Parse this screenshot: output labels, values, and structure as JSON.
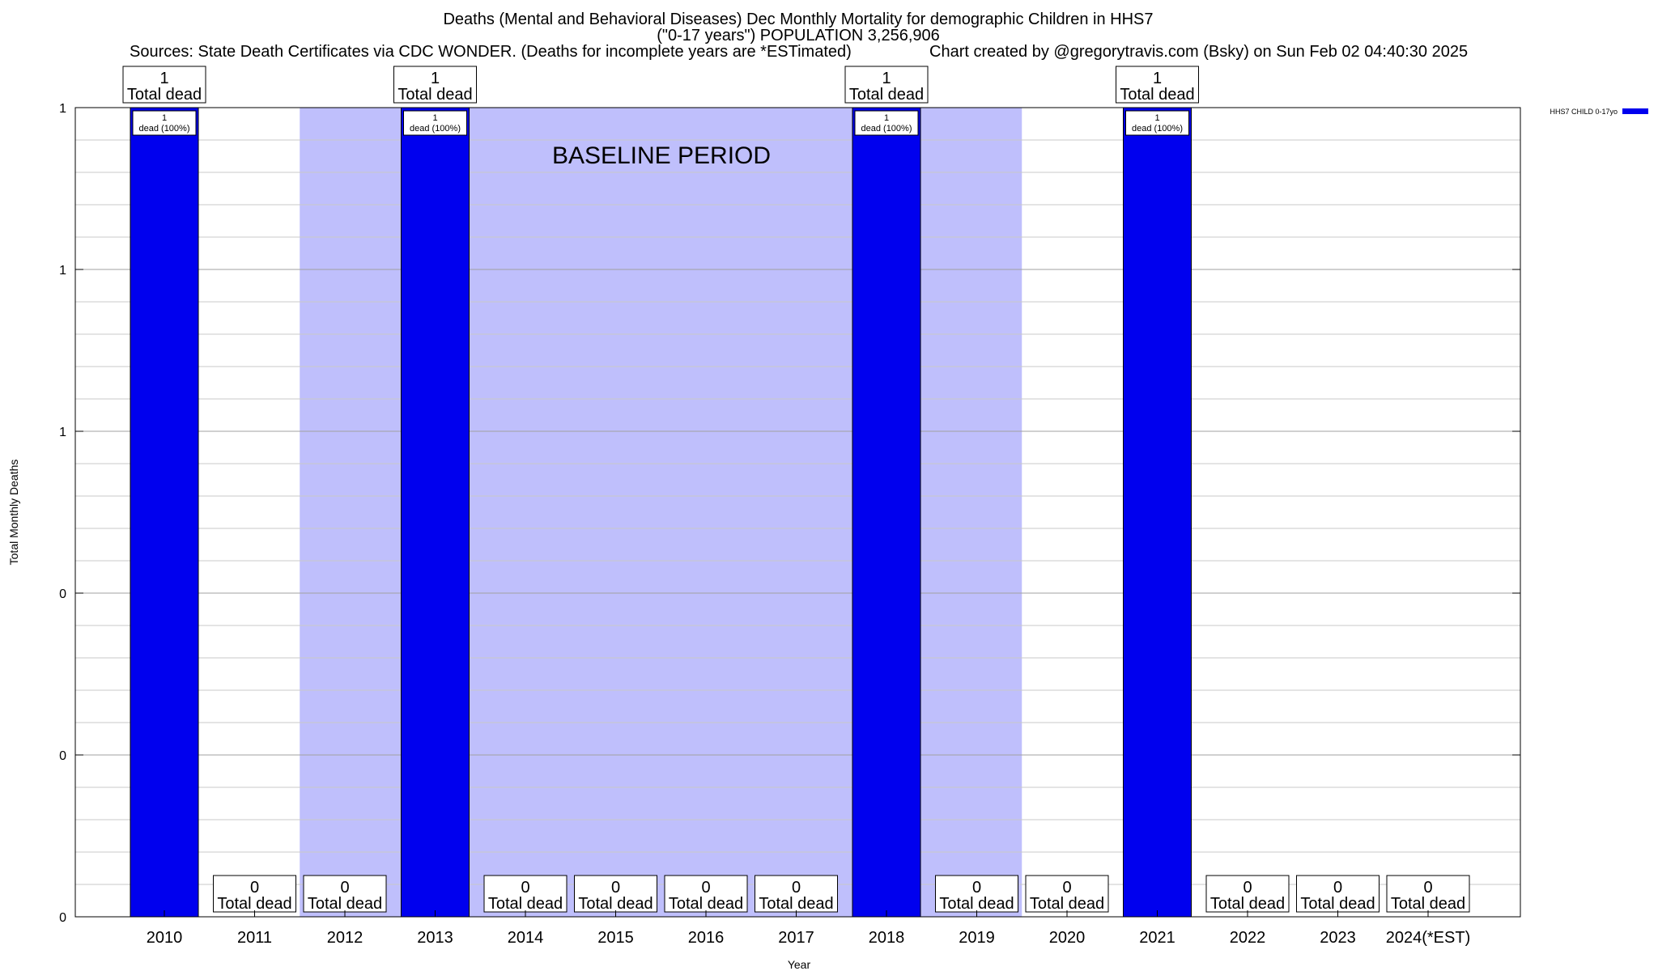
{
  "header": {
    "title_line1": "Deaths (Mental and Behavioral Diseases) Dec Monthly Mortality for demographic Children in HHS7",
    "title_line2": "(\"0-17 years\") POPULATION 3,256,906",
    "sources": "Sources: State Death Certificates via CDC WONDER. (Deaths for incomplete years are *ESTimated)",
    "credit": "Chart created by @gregorytravis.com (Bsky) on Sun Feb 02 04:40:30 2025"
  },
  "chart_data": {
    "type": "bar",
    "xlabel": "Year",
    "ylabel": "Total Monthly Deaths",
    "ylim": [
      0,
      1
    ],
    "y_tick_labels": [
      "0",
      "0",
      "0",
      "1",
      "1",
      "1"
    ],
    "categories": [
      "2010",
      "2011",
      "2012",
      "2013",
      "2014",
      "2015",
      "2016",
      "2017",
      "2018",
      "2019",
      "2020",
      "2021",
      "2022",
      "2023",
      "2024(*EST)"
    ],
    "series": [
      {
        "name": "HHS7 CHILD 0-17yo",
        "color": "#0000ee",
        "values": [
          1,
          0,
          0,
          1,
          0,
          0,
          0,
          0,
          1,
          0,
          0,
          1,
          0,
          0,
          0
        ]
      }
    ],
    "total_label_suffix": "Total dead",
    "inner_label_text": "dead (100%)",
    "baseline": {
      "label": "BASELINE PERIOD",
      "start_category": "2012",
      "end_category": "2019",
      "color": "#bfbffc"
    },
    "grid": true,
    "legend_position": "top-right"
  }
}
